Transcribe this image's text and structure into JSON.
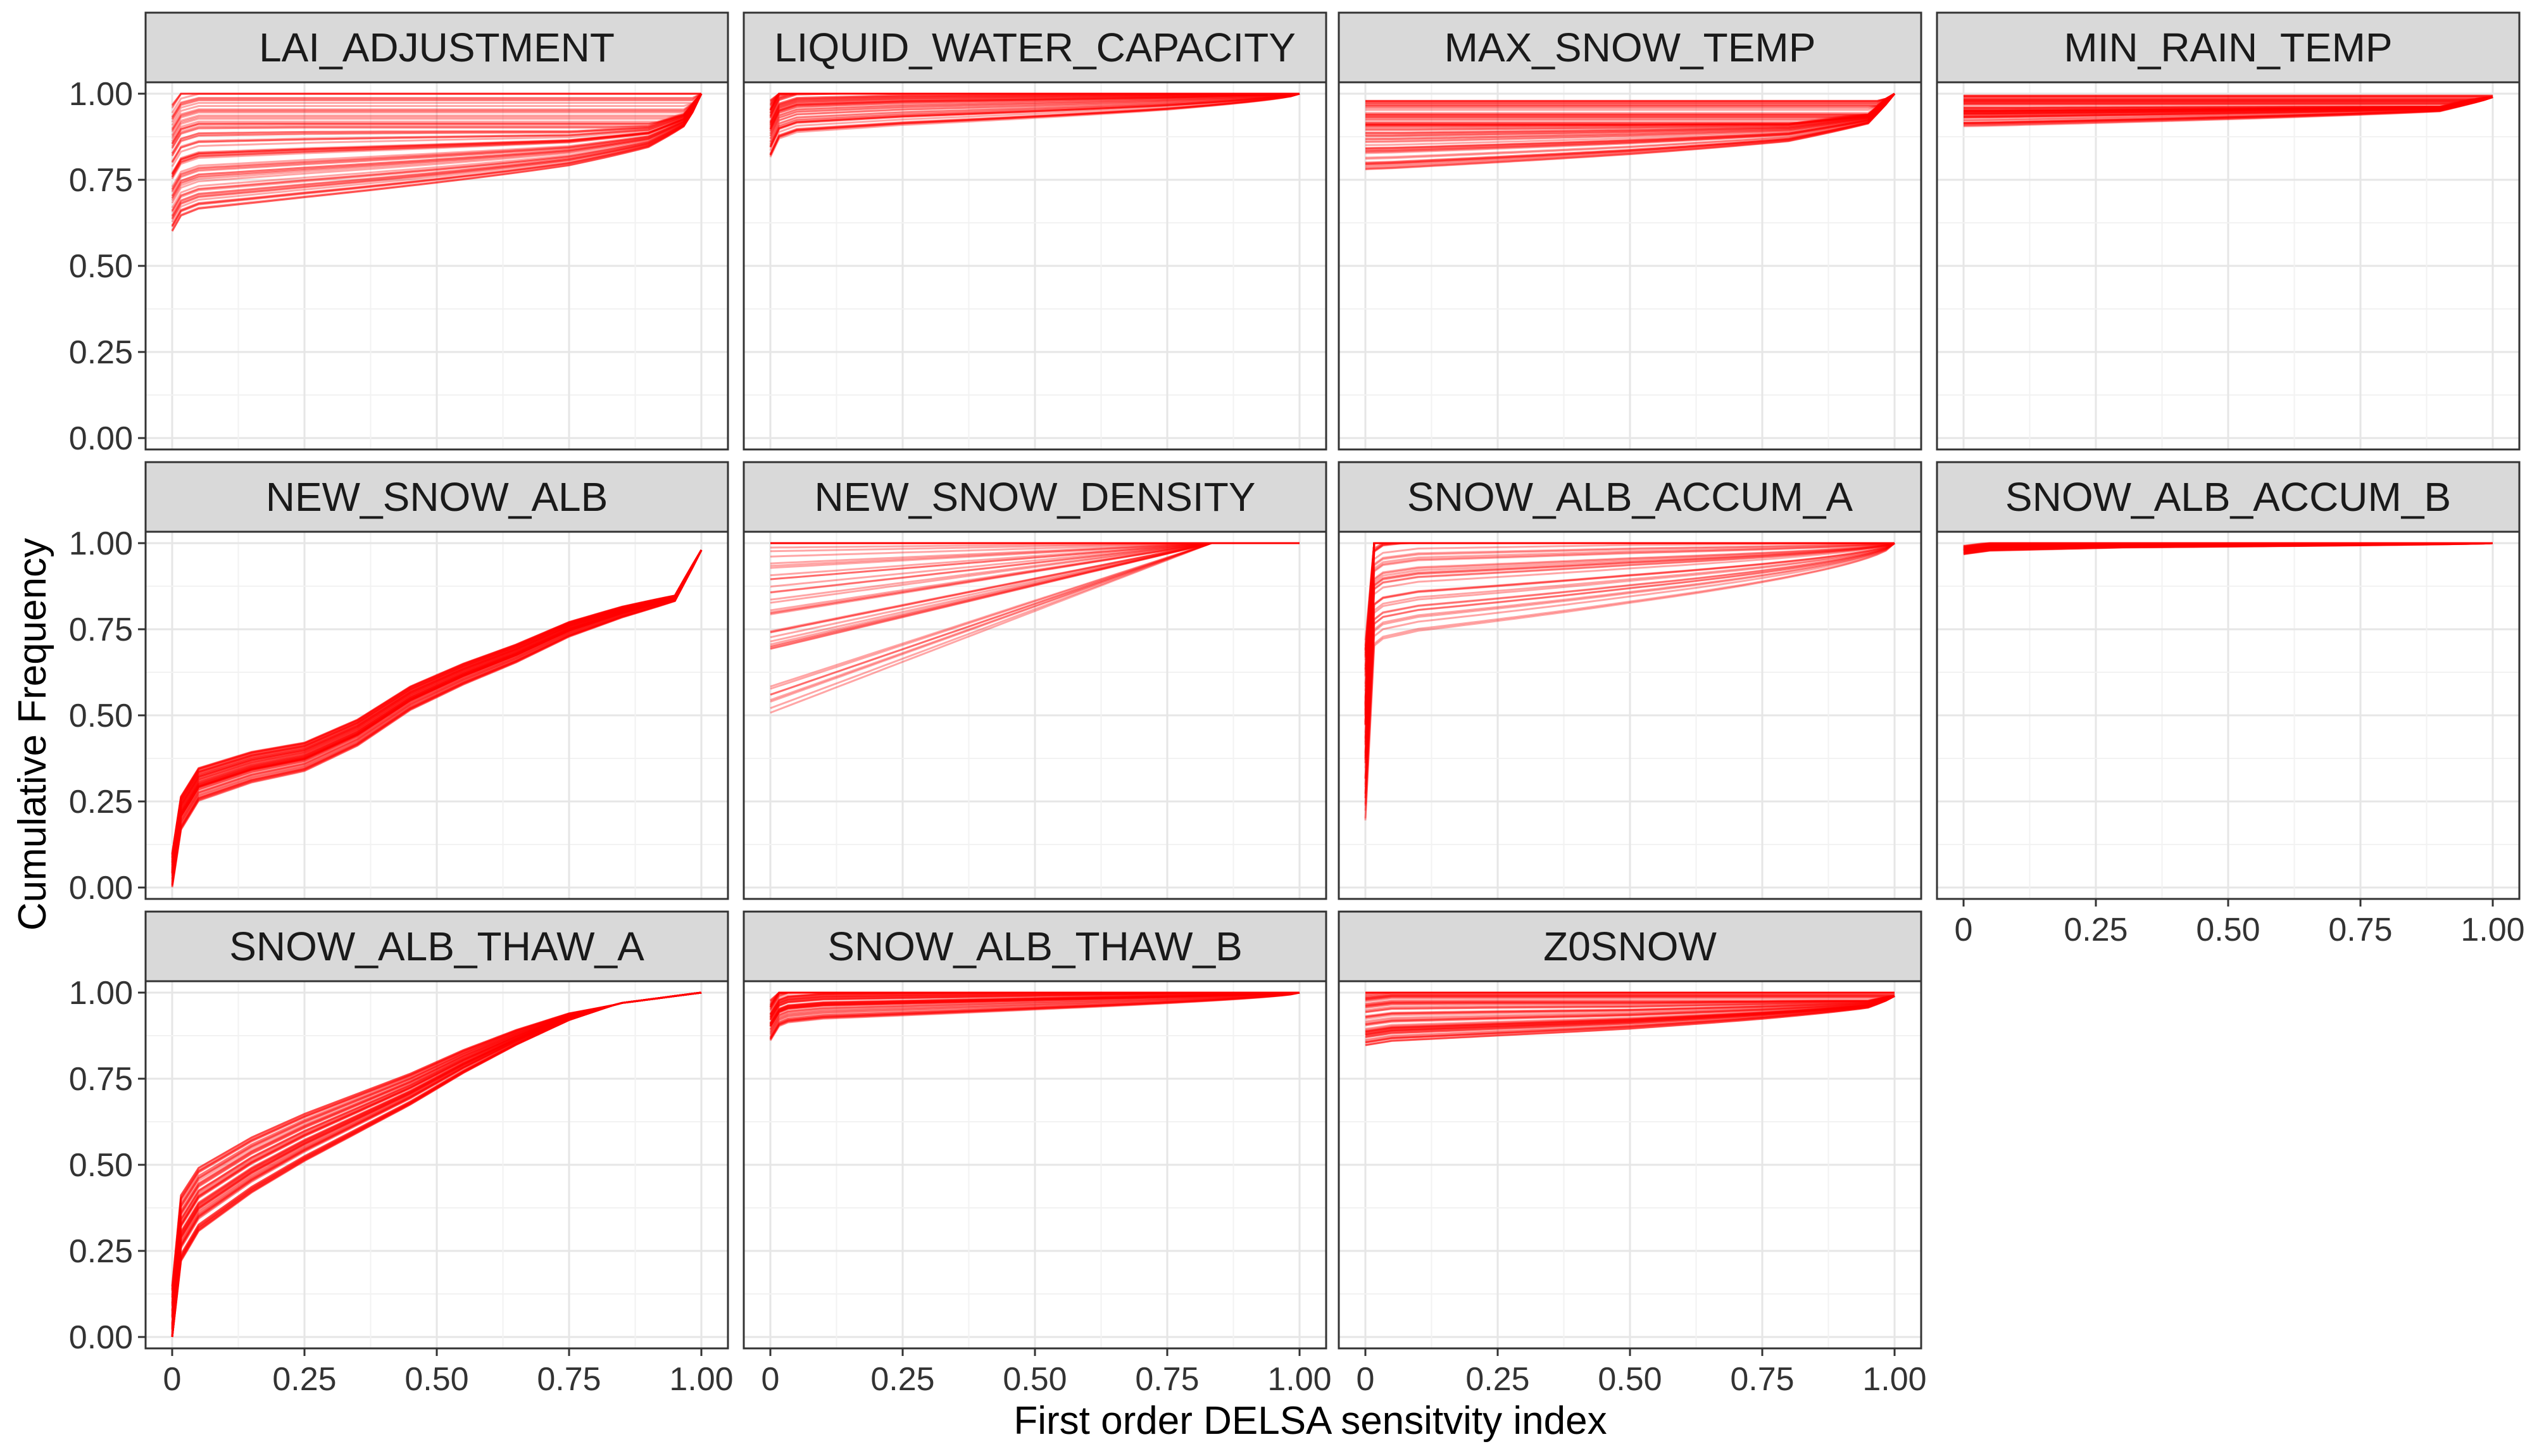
{
  "chart_data": {
    "type": "line",
    "description_type": "faceted empirical cumulative distribution curves",
    "xlabel": "First order DELSA sensitvity index",
    "ylabel": "Cumulative Frequency",
    "xlim": [
      0,
      1
    ],
    "ylim": [
      0,
      1
    ],
    "x_ticks": [
      "0",
      "0.25",
      "0.50",
      "0.75",
      "1.00"
    ],
    "y_ticks": [
      "0.00",
      "0.25",
      "0.50",
      "0.75",
      "1.00"
    ],
    "grid": true,
    "line_color": "#ff0000",
    "strip_color": "#d9d9d9",
    "facets": [
      {
        "name": "LAI_ADJUSTMENT",
        "ecdf": [
          [
            0,
            0.78
          ],
          [
            0.01,
            0.82
          ],
          [
            0.05,
            0.84
          ],
          [
            0.25,
            0.85
          ],
          [
            0.5,
            0.86
          ],
          [
            0.75,
            0.87
          ],
          [
            0.9,
            0.89
          ],
          [
            0.97,
            0.93
          ],
          [
            1.0,
            1.0
          ]
        ],
        "spread": [
          0.6,
          0.98
        ]
      },
      {
        "name": "LIQUID_WATER_CAPACITY",
        "ecdf": [
          [
            0,
            0.9
          ],
          [
            0.01,
            0.95
          ],
          [
            0.05,
            0.97
          ],
          [
            0.25,
            0.98
          ],
          [
            0.5,
            0.985
          ],
          [
            0.75,
            0.99
          ],
          [
            1.0,
            1.0
          ]
        ],
        "spread": [
          0.82,
          0.99
        ]
      },
      {
        "name": "MAX_SNOW_TEMP",
        "ecdf": [
          [
            0,
            0.88
          ],
          [
            0.05,
            0.88
          ],
          [
            0.5,
            0.89
          ],
          [
            0.8,
            0.9
          ],
          [
            0.95,
            0.93
          ],
          [
            1.0,
            1.0
          ]
        ],
        "spread": [
          0.78,
          0.98
        ]
      },
      {
        "name": "MIN_RAIN_TEMP",
        "ecdf": [
          [
            0,
            0.95
          ],
          [
            0.05,
            0.95
          ],
          [
            0.5,
            0.955
          ],
          [
            0.9,
            0.96
          ],
          [
            1.0,
            0.99
          ]
        ],
        "spread": [
          0.9,
          0.99
        ]
      },
      {
        "name": "NEW_SNOW_ALB",
        "ecdf": [
          [
            0,
            0.05
          ],
          [
            0.01,
            0.2
          ],
          [
            0.05,
            0.3
          ],
          [
            0.15,
            0.35
          ],
          [
            0.25,
            0.38
          ],
          [
            0.35,
            0.45
          ],
          [
            0.45,
            0.55
          ],
          [
            0.55,
            0.62
          ],
          [
            0.65,
            0.68
          ],
          [
            0.75,
            0.75
          ],
          [
            0.85,
            0.8
          ],
          [
            0.95,
            0.84
          ],
          [
            1.0,
            0.98
          ]
        ],
        "spread": [
          0.15,
          0.25
        ]
      },
      {
        "name": "NEW_SNOW_DENSITY",
        "ecdf": [
          [
            0,
            1.0
          ],
          [
            1.0,
            1.0
          ]
        ],
        "spread": [
          1.0,
          1.0
        ]
      },
      {
        "name": "SNOW_ALB_ACCUM_A",
        "ecdf": [
          [
            0,
            0.45
          ],
          [
            0.005,
            0.9
          ],
          [
            0.02,
            0.97
          ],
          [
            0.1,
            0.985
          ],
          [
            0.5,
            0.995
          ],
          [
            1.0,
            1.0
          ]
        ],
        "spread": [
          0.45,
          0.99
        ]
      },
      {
        "name": "SNOW_ALB_ACCUM_B",
        "ecdf": [
          [
            0,
            0.98
          ],
          [
            0.05,
            0.99
          ],
          [
            0.3,
            0.997
          ],
          [
            1.0,
            1.0
          ]
        ],
        "spread": [
          0.97,
          0.995
        ]
      },
      {
        "name": "SNOW_ALB_THAW_A",
        "ecdf": [
          [
            0,
            0.05
          ],
          [
            0.01,
            0.3
          ],
          [
            0.05,
            0.4
          ],
          [
            0.15,
            0.5
          ],
          [
            0.25,
            0.58
          ],
          [
            0.35,
            0.65
          ],
          [
            0.45,
            0.72
          ],
          [
            0.55,
            0.8
          ],
          [
            0.65,
            0.87
          ],
          [
            0.75,
            0.93
          ],
          [
            0.85,
            0.97
          ],
          [
            0.95,
            0.99
          ],
          [
            1.0,
            1.0
          ]
        ],
        "spread": [
          0.2,
          0.2
        ]
      },
      {
        "name": "SNOW_ALB_THAW_B",
        "ecdf": [
          [
            0,
            0.92
          ],
          [
            0.02,
            0.97
          ],
          [
            0.1,
            0.98
          ],
          [
            0.5,
            0.99
          ],
          [
            1.0,
            1.0
          ]
        ],
        "spread": [
          0.87,
          0.99
        ]
      },
      {
        "name": "Z0SNOW",
        "ecdf": [
          [
            0,
            0.93
          ],
          [
            0.05,
            0.94
          ],
          [
            0.25,
            0.945
          ],
          [
            0.5,
            0.95
          ],
          [
            0.75,
            0.96
          ],
          [
            0.95,
            0.97
          ],
          [
            1.0,
            0.99
          ]
        ],
        "spread": [
          0.82,
          0.99
        ]
      }
    ]
  }
}
